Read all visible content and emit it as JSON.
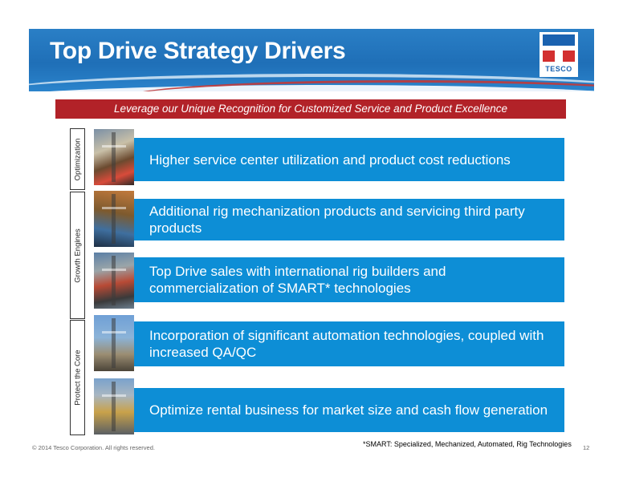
{
  "slide": {
    "title": "Top Drive Strategy Drivers",
    "logo_text": "TESCO",
    "subtitle": "Leverage our Unique Recognition for Customized Service and Product Excellence"
  },
  "categories": [
    {
      "label": "Optimization"
    },
    {
      "label": "Growth Engines"
    },
    {
      "label": "Protect the Core"
    }
  ],
  "drivers": [
    {
      "text": "Higher service center utilization and product cost reductions"
    },
    {
      "text": "Additional rig mechanization products and servicing third party products"
    },
    {
      "text": "Top Drive sales with international rig builders and commercialization of SMART* technologies"
    },
    {
      "text": "Incorporation of significant automation technologies, coupled with increased QA/QC"
    },
    {
      "text": "Optimize rental business for market size and cash flow generation"
    }
  ],
  "footer": {
    "copyright": "© 2014 Tesco Corporation. All rights reserved.",
    "page_number": "12",
    "note": "*SMART: Specialized, Mechanized, Automated, Rig Technologies"
  },
  "colors": {
    "banner_blue": "#1f6fb7",
    "box_blue": "#0d8ed6",
    "subtitle_red": "#b22228"
  }
}
